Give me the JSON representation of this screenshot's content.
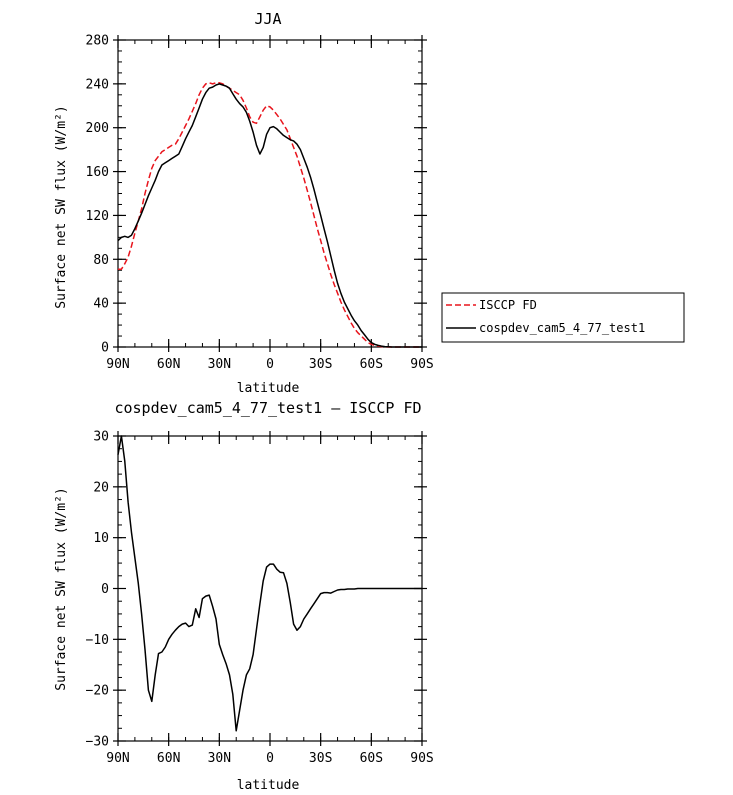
{
  "chart_data": [
    {
      "type": "line",
      "title": "JJA",
      "xlabel": "latitude",
      "ylabel": "Surface net SW flux (W/m²)",
      "x_ticks": [
        "90N",
        "60N",
        "30N",
        "0",
        "30S",
        "60S",
        "90S"
      ],
      "x_tick_values": [
        90,
        60,
        30,
        0,
        -30,
        -60,
        -90
      ],
      "y_ticks": [
        "0",
        "40",
        "80",
        "120",
        "160",
        "200",
        "240",
        "280"
      ],
      "y_tick_values": [
        0,
        40,
        80,
        120,
        160,
        200,
        240,
        280
      ],
      "xlim": [
        90,
        -90
      ],
      "ylim": [
        0,
        280
      ],
      "legend": {
        "placement": "right",
        "entries": [
          "ISCCP FD",
          "cospdev_cam5_4_77_test1"
        ]
      },
      "series": [
        {
          "name": "ISCCP FD",
          "color": "#e8141c",
          "dash": "dashed",
          "x": [
            90,
            88,
            86,
            84,
            82,
            80,
            78,
            76,
            74,
            72,
            70,
            68,
            66,
            64,
            62,
            60,
            58,
            56,
            54,
            52,
            50,
            48,
            46,
            44,
            42,
            40,
            38,
            36,
            34,
            32,
            30,
            28,
            26,
            24,
            22,
            20,
            18,
            16,
            14,
            12,
            10,
            8,
            6,
            4,
            2,
            0,
            -2,
            -4,
            -6,
            -8,
            -10,
            -12,
            -14,
            -16,
            -18,
            -20,
            -22,
            -24,
            -26,
            -28,
            -30,
            -32,
            -34,
            -36,
            -38,
            -40,
            -42,
            -44,
            -46,
            -48,
            -50,
            -52,
            -54,
            -56,
            -58,
            -60,
            -62,
            -64,
            -66,
            -68,
            -70,
            -72,
            -74,
            -76,
            -78,
            -80,
            -84,
            -88,
            -90
          ],
          "y": [
            71,
            71,
            76,
            82,
            92,
            104,
            115,
            126,
            140,
            152,
            163,
            170,
            174,
            178,
            180,
            182,
            184,
            185,
            190,
            196,
            202,
            208,
            215,
            222,
            230,
            236,
            240,
            241,
            240,
            241,
            241,
            240,
            238,
            236,
            234,
            232,
            230,
            225,
            218,
            210,
            205,
            204,
            210,
            216,
            220,
            219,
            216,
            212,
            208,
            203,
            198,
            190,
            182,
            174,
            164,
            154,
            143,
            132,
            120,
            108,
            97,
            86,
            76,
            66,
            57,
            49,
            41,
            34,
            28,
            22,
            17,
            13,
            10,
            7,
            4,
            2.5,
            1.5,
            0.8,
            0.4,
            0.2,
            0,
            0,
            0,
            0,
            0,
            0,
            0,
            0,
            0
          ]
        },
        {
          "name": "cospdev_cam5_4_77_test1",
          "color": "#000000",
          "dash": "solid",
          "x": [
            90,
            88,
            86,
            84,
            82,
            80,
            78,
            76,
            74,
            72,
            70,
            68,
            66,
            64,
            62,
            60,
            58,
            56,
            54,
            52,
            50,
            48,
            46,
            44,
            42,
            40,
            38,
            36,
            34,
            32,
            30,
            28,
            26,
            24,
            22,
            20,
            18,
            16,
            14,
            12,
            10,
            8,
            6,
            4,
            2,
            0,
            -2,
            -4,
            -6,
            -8,
            -10,
            -12,
            -14,
            -16,
            -18,
            -20,
            -22,
            -24,
            -26,
            -28,
            -30,
            -32,
            -34,
            -36,
            -38,
            -40,
            -42,
            -44,
            -46,
            -48,
            -50,
            -52,
            -54,
            -56,
            -58,
            -60,
            -62,
            -64,
            -66,
            -68,
            -70,
            -72,
            -74,
            -76,
            -78,
            -80,
            -84,
            -88,
            -90
          ],
          "y": [
            97,
            100,
            101,
            100,
            102,
            108,
            115,
            122,
            130,
            138,
            145,
            152,
            160,
            166,
            168,
            170,
            172,
            174,
            176,
            183,
            190,
            196,
            202,
            210,
            218,
            226,
            232,
            236,
            237,
            239,
            240,
            239,
            238,
            236,
            231,
            226,
            222,
            219,
            214,
            206,
            196,
            184,
            176,
            182,
            194,
            200,
            201,
            199,
            196,
            193,
            191,
            189,
            188,
            185,
            180,
            172,
            164,
            155,
            144,
            132,
            120,
            108,
            96,
            83,
            70,
            58,
            49,
            41,
            35,
            29,
            24,
            20,
            15,
            11,
            7,
            4,
            2.5,
            1.5,
            0.8,
            0.4,
            0.2,
            0,
            0,
            0,
            0,
            0,
            0,
            0,
            0
          ]
        }
      ]
    },
    {
      "type": "line",
      "title": "cospdev_cam5_4_77_test1 – ISCCP FD",
      "xlabel": "latitude",
      "ylabel": "Surface net SW flux (W/m²)",
      "x_ticks": [
        "90N",
        "60N",
        "30N",
        "0",
        "30S",
        "60S",
        "90S"
      ],
      "x_tick_values": [
        90,
        60,
        30,
        0,
        -30,
        -60,
        -90
      ],
      "y_ticks": [
        "30",
        "20",
        "10",
        "0",
        "−10",
        "−20",
        "−30"
      ],
      "y_tick_values": [
        30,
        20,
        10,
        0,
        -10,
        -20,
        -30
      ],
      "xlim": [
        90,
        -90
      ],
      "ylim": [
        -30,
        30
      ],
      "series": [
        {
          "color": "#000000",
          "dash": "solid",
          "x": [
            90,
            88,
            86,
            84,
            82,
            80,
            78,
            76,
            74,
            72,
            70,
            68,
            66,
            64,
            62,
            60,
            58,
            56,
            54,
            52,
            50,
            48,
            46,
            44,
            42,
            40,
            38,
            36,
            34,
            32,
            30,
            28,
            26,
            24,
            22,
            20,
            18,
            16,
            14,
            12,
            10,
            8,
            6,
            4,
            2,
            0,
            -2,
            -4,
            -6,
            -8,
            -10,
            -12,
            -14,
            -16,
            -18,
            -20,
            -22,
            -24,
            -26,
            -28,
            -30,
            -32,
            -34,
            -36,
            -38,
            -40,
            -42,
            -44,
            -46,
            -48,
            -50,
            -52,
            -54,
            -56,
            -58,
            -60,
            -62,
            -64,
            -66,
            -68,
            -70,
            -72,
            -74,
            -76,
            -78,
            -80,
            -84,
            -88,
            -90
          ],
          "y": [
            26.3,
            30,
            25,
            17,
            11,
            6,
            1,
            -5,
            -12,
            -20,
            -22.2,
            -17,
            -12.8,
            -12.5,
            -11.5,
            -10,
            -9,
            -8.2,
            -7.5,
            -7,
            -6.8,
            -7.5,
            -7.2,
            -4,
            -5.7,
            -2,
            -1.5,
            -1.3,
            -3.5,
            -6,
            -11,
            -13,
            -14.8,
            -17,
            -20.8,
            -28,
            -24,
            -20,
            -17,
            -15.8,
            -13,
            -8,
            -3,
            1.5,
            4.2,
            4.8,
            4.8,
            3.8,
            3.2,
            3.1,
            1,
            -2.8,
            -7,
            -8.2,
            -7.5,
            -6,
            -5,
            -4,
            -3,
            -2,
            -1,
            -0.8,
            -0.8,
            -0.9,
            -0.6,
            -0.3,
            -0.2,
            -0.2,
            -0.1,
            -0.1,
            -0.1,
            0,
            0,
            0,
            0,
            0,
            0,
            0,
            0,
            0,
            0,
            0,
            0,
            0,
            0,
            0,
            0,
            0,
            0
          ]
        }
      ]
    }
  ]
}
